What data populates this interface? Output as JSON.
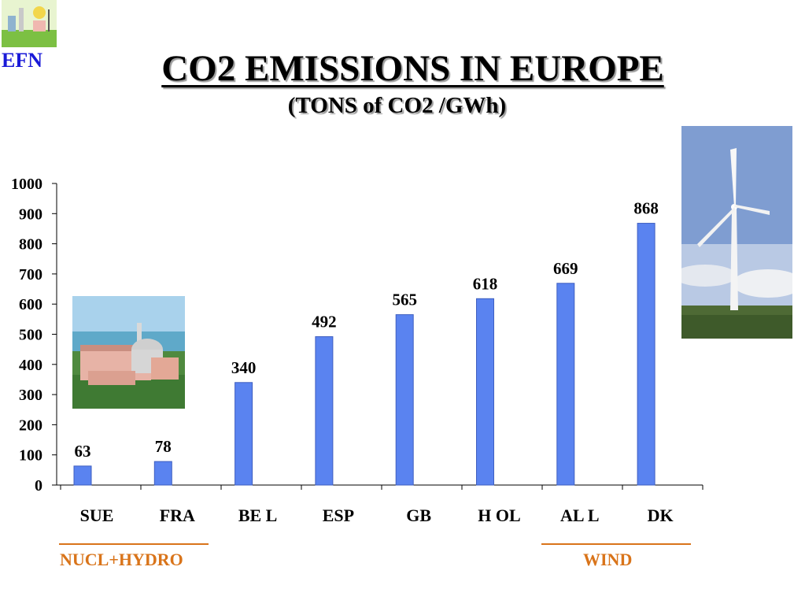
{
  "header": {
    "logo_label": "EFN",
    "title": "CO2 EMISSIONS IN EUROPE",
    "subtitle": "(TONS of CO2 /GWh)"
  },
  "images": {
    "left_icon": "nuclear-plant-photo",
    "right_icon": "wind-turbine-photo"
  },
  "groups": [
    {
      "label": "NUCL+HYDRO",
      "color": "#d9741a"
    },
    {
      "label": "WIND",
      "color": "#d9741a"
    }
  ],
  "chart_data": {
    "type": "bar",
    "categories": [
      "SUE",
      "FRA",
      "BE L",
      "ESP",
      "GB",
      "H OL",
      "AL L",
      "DK"
    ],
    "values": [
      63,
      78,
      340,
      492,
      565,
      618,
      669,
      868
    ],
    "data_labels": [
      "63",
      "78",
      "340",
      "492",
      "565",
      "618",
      "669",
      "868"
    ],
    "ylim": [
      0,
      1000
    ],
    "yticks": [
      0,
      100,
      200,
      300,
      400,
      500,
      600,
      700,
      800,
      900,
      1000
    ],
    "bar_color": "#5a83f0",
    "grid": false,
    "legend": "none"
  }
}
